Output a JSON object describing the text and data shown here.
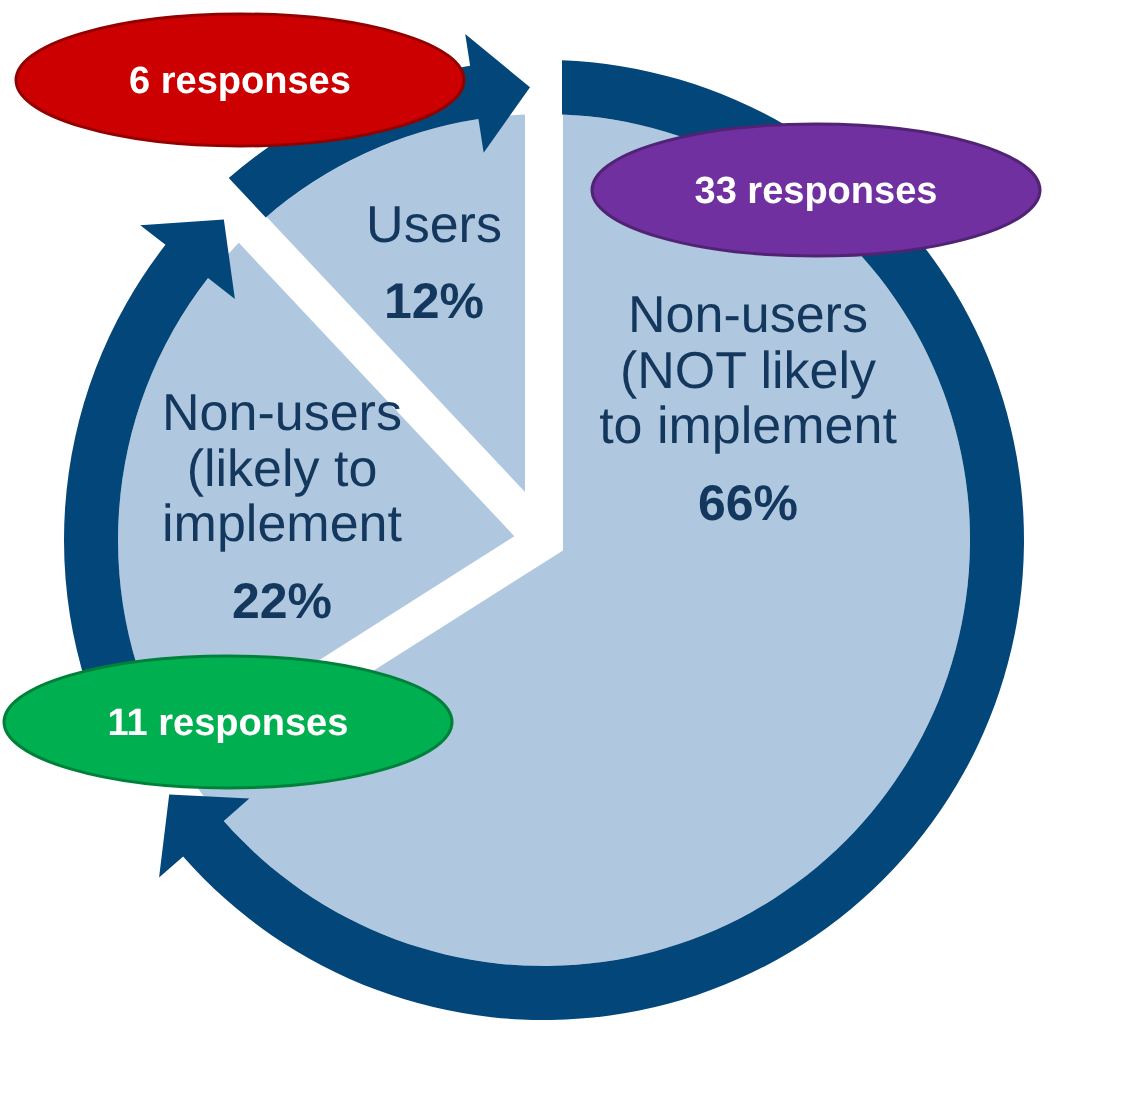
{
  "chart_data": {
    "type": "pie",
    "categories": [
      "Non-users (NOT likely to implement",
      "Non-users (likely to implement",
      "Users"
    ],
    "series": [
      {
        "values": [
          66,
          22,
          12
        ],
        "value_labels": [
          "66%",
          "22%",
          "12%"
        ],
        "colors": [
          "#afc8e0",
          "#afc8e0",
          "#afc8e0"
        ]
      },
      {
        "values": [
          33,
          11,
          6
        ],
        "value_labels": [
          "33 responses",
          "11 responses",
          "6 responses"
        ],
        "colors": [
          "#03467a",
          "#03467a",
          "#03467a"
        ]
      }
    ]
  }
}
